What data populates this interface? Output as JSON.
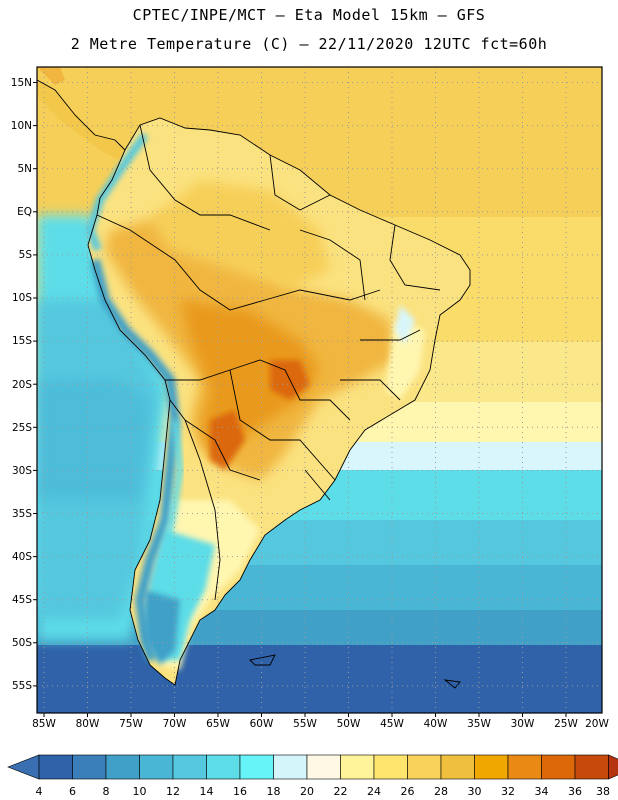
{
  "header": {
    "title_line1": "CPTEC/INPE/MCT –  Eta Model 15km – GFS",
    "title_line2": "2 Metre Temperature (C) – 22/11/2020 12UTC fct=60h"
  },
  "map": {
    "lat_labels": [
      "15N",
      "10N",
      "5N",
      "EQ",
      "5S",
      "10S",
      "15S",
      "20S",
      "25S",
      "30S",
      "35S",
      "40S",
      "45S",
      "50S",
      "55S"
    ],
    "lon_labels": [
      "85W",
      "80W",
      "75W",
      "70W",
      "65W",
      "60W",
      "55W",
      "50W",
      "45W",
      "40W",
      "35W",
      "30W",
      "25W",
      "20W"
    ],
    "lat_range": [
      17.5,
      -57.5
    ],
    "lon_range": [
      -85,
      -20
    ]
  },
  "colorbar": {
    "ticks": [
      "4",
      "6",
      "8",
      "10",
      "12",
      "14",
      "16",
      "18",
      "20",
      "22",
      "24",
      "26",
      "28",
      "30",
      "32",
      "34",
      "36",
      "38"
    ],
    "under_color": "#3a6fb2",
    "over_color": "#b53410",
    "colors": [
      "#2f62a8",
      "#3a7fb9",
      "#40a0c8",
      "#4ab6d6",
      "#55c8df",
      "#5ddde8",
      "#66f4f8",
      "#d4f6fb",
      "#fff8e4",
      "#fff49a",
      "#ffe46e",
      "#f8d25a",
      "#efbf3e",
      "#f0a800",
      "#e88a14",
      "#dc6808",
      "#c84a0a",
      "#b53410"
    ]
  }
}
